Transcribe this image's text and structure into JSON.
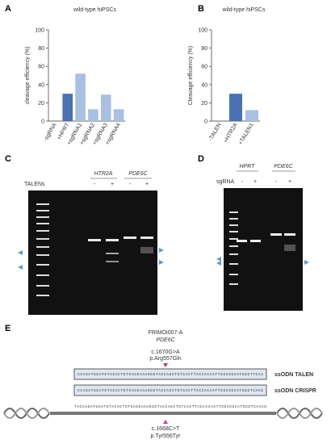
{
  "chart_data": [
    {
      "type": "bar",
      "label": "A",
      "title": "wild-type hiPSCs",
      "y_label": "cleavage efficiency (%)",
      "categories": [
        "-sgRNA",
        "+HPRT",
        "+sgRNA1",
        "+sgRNA2",
        "+sgRNA3",
        "+sgRNA4"
      ],
      "values": [
        0,
        30,
        52,
        13,
        29,
        13
      ],
      "colors": [
        "#a9c0e2",
        "#4a72b2",
        "#a9c0e2",
        "#a9c0e2",
        "#a9c0e2",
        "#a9c0e2"
      ],
      "ylim": [
        0,
        100
      ],
      "yticks": [
        0,
        20,
        40,
        60,
        80,
        100
      ]
    },
    {
      "type": "bar",
      "label": "B",
      "title": "wild-type hiPSCs",
      "y_label": "Cleavage efficiency (%)",
      "categories": [
        "-TALEN",
        "+HTR2A",
        "+TALEN1"
      ],
      "values": [
        0,
        30,
        12
      ],
      "colors": [
        "#a9c0e2",
        "#4a72b2",
        "#a9c0e2"
      ],
      "ylim": [
        0,
        100
      ],
      "yticks": [
        0,
        20,
        40,
        60,
        80,
        100
      ]
    }
  ],
  "gels": [
    {
      "label": "C",
      "genes": [
        "HTR2A",
        "PDE6C"
      ],
      "treatment": "TALENs",
      "lanes": [
        "-",
        "+",
        "-",
        "+"
      ]
    },
    {
      "label": "D",
      "genes": [
        "HPRT",
        "PDE6C"
      ],
      "treatment": "sgRNA",
      "lanes": [
        "-",
        "+",
        "-",
        "+"
      ]
    }
  ],
  "schematic": {
    "label": "E",
    "cell_line": "FRIMOi007-A",
    "gene": "PDE6C",
    "mutation": "c.1670G>A",
    "protein_change": "p.Arg557Gln",
    "oligos": [
      {
        "sequence": "CCAGATGGATGTACACTGTGAGGAAAGGGTACCAGCTGTCACTTACCACAATTGGCGGCATGGGTTCAA",
        "name": "ssODN TALEN"
      },
      {
        "sequence": "CCAGATGGATGTACACTGTGAGGAAAGGGTACCAGCTGTCACTTACCACAATTGGCGGCATGGGTCAAG",
        "name": "ssODN CRISPR"
      }
    ],
    "genomic": "TACCAGATGGATGTACACTGTGAGGAAAGGGTACCAGCTGTCACTTACCACAATTGGCGGCATGGGTCAACG",
    "silent_mutation": "c.1668C>T",
    "silent_protein_change": "p.Tyr556Tyr"
  }
}
